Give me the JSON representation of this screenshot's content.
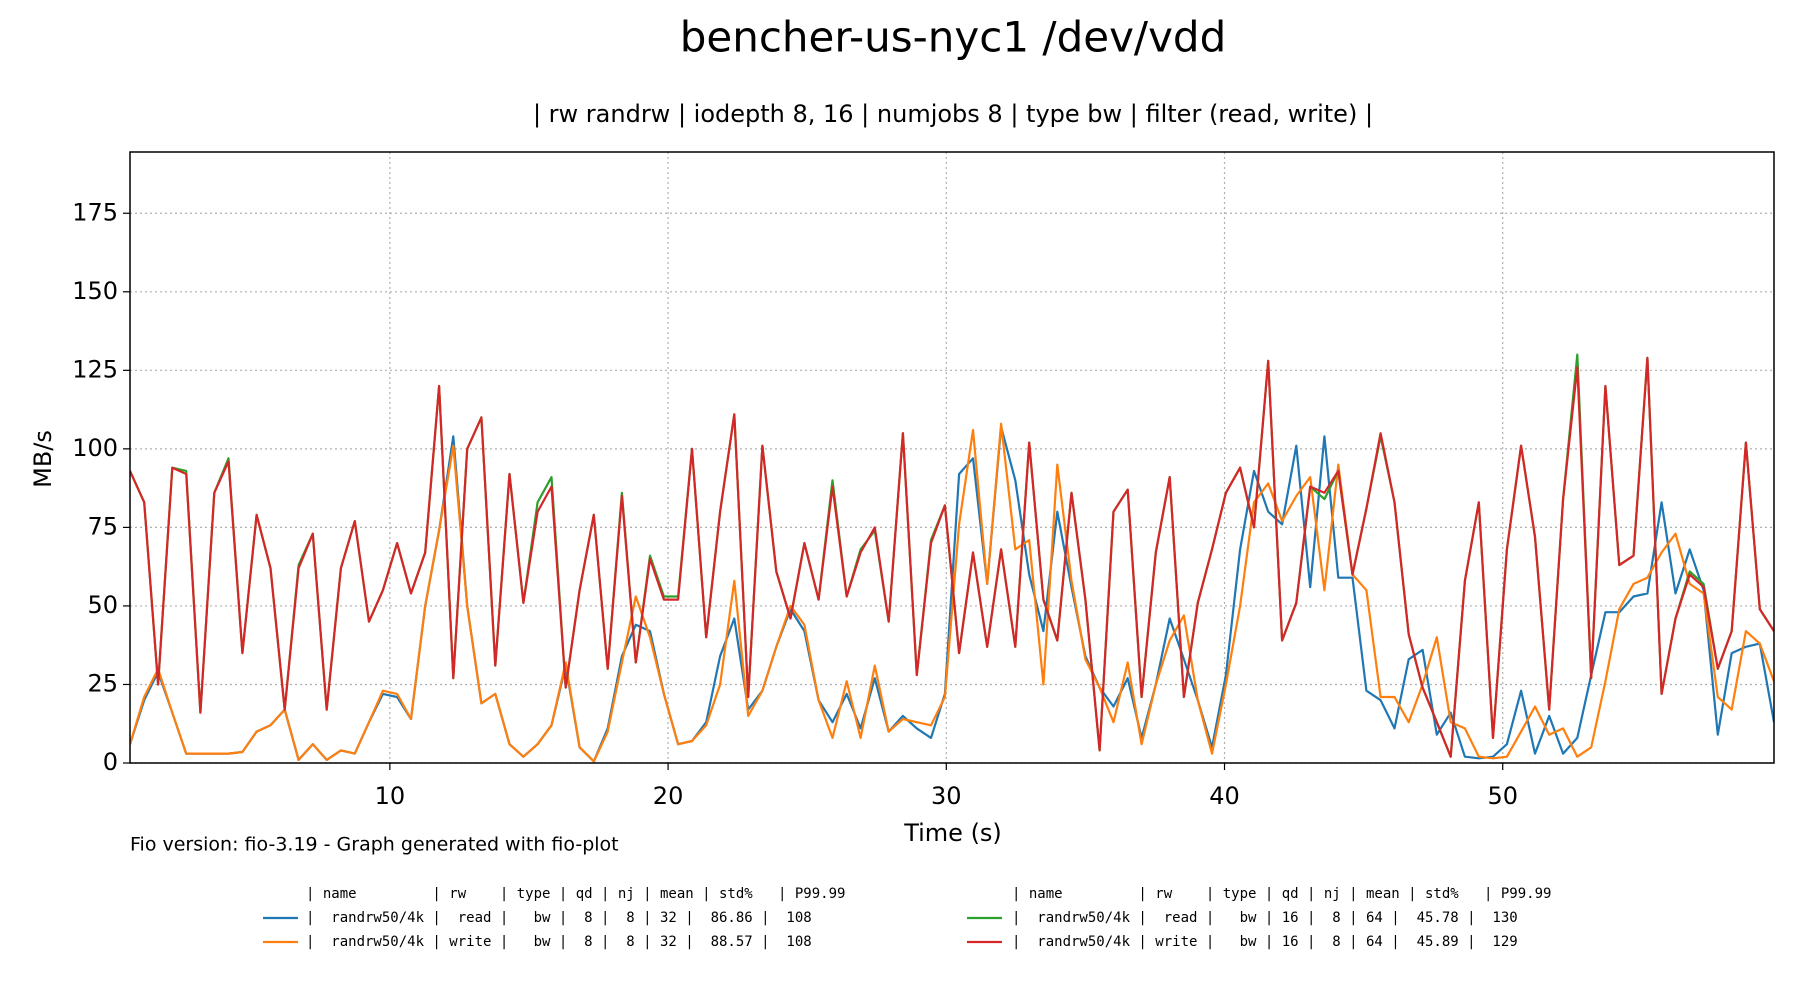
{
  "chart_data": {
    "type": "line",
    "title": "bencher-us-nyc1 /dev/vdd",
    "subtitle": "| rw randrw | iodepth 8, 16 | numjobs 8 | type bw | filter (read, write) |",
    "xlabel": "Time (s)",
    "ylabel": "MB/s",
    "footer": "Fio version: fio-3.19 - Graph generated with fio-plot",
    "legend": "below",
    "legend_header": "| name         | rw    | type | qd | nj | mean | std%   | P99.99",
    "grid": true,
    "xlim": [
      0.66,
      59.75
    ],
    "xticks": [
      10,
      20,
      30,
      40,
      50
    ],
    "ylim": [
      0,
      194.5
    ],
    "yticks": [
      0,
      25,
      50,
      75,
      100,
      125,
      150,
      175
    ],
    "x": [
      0.66,
      1.17,
      1.67,
      2.18,
      2.68,
      3.19,
      3.69,
      4.2,
      4.7,
      5.21,
      5.71,
      6.22,
      6.72,
      7.23,
      7.73,
      8.24,
      8.74,
      9.25,
      9.75,
      10.26,
      10.76,
      11.27,
      11.77,
      12.28,
      12.78,
      13.29,
      13.79,
      14.3,
      14.8,
      15.31,
      15.81,
      16.32,
      16.82,
      17.33,
      17.83,
      18.34,
      18.84,
      19.35,
      19.85,
      20.36,
      20.86,
      21.37,
      21.87,
      22.38,
      22.88,
      23.39,
      23.89,
      24.4,
      24.9,
      25.41,
      25.91,
      26.42,
      26.92,
      27.43,
      27.93,
      28.44,
      28.94,
      29.45,
      29.95,
      30.46,
      30.96,
      31.47,
      31.97,
      32.48,
      32.98,
      33.49,
      33.99,
      34.5,
      35.0,
      35.51,
      36.01,
      36.52,
      37.02,
      37.53,
      38.03,
      38.54,
      39.04,
      39.55,
      40.05,
      40.56,
      41.06,
      41.57,
      42.07,
      42.58,
      43.08,
      43.59,
      44.09,
      44.6,
      45.1,
      45.61,
      46.11,
      46.62,
      47.12,
      47.63,
      48.13,
      48.64,
      49.14,
      49.65,
      50.15,
      50.66,
      51.16,
      51.67,
      52.17,
      52.68,
      53.18,
      53.69,
      54.19,
      54.7,
      55.2,
      55.71,
      56.21,
      56.72,
      57.22,
      57.73,
      58.23,
      58.74,
      59.24,
      59.75
    ],
    "series": [
      {
        "name": "|  randrw50/4k |  read |   bw |  8 |  8 | 32 |  86.86 |  108",
        "color": "#1f77b4",
        "values": [
          6,
          20,
          29,
          16,
          3,
          3,
          3,
          3,
          3.5,
          10,
          12,
          17,
          1,
          6,
          1,
          4,
          3,
          13,
          22,
          21,
          14,
          50,
          74,
          104,
          50,
          19,
          22,
          6,
          2,
          6,
          12,
          31,
          5,
          0.5,
          11,
          34,
          44,
          42,
          22,
          6,
          7,
          13,
          34,
          46,
          17,
          23,
          37,
          49,
          42,
          20,
          13,
          22,
          11,
          27,
          10,
          15,
          11,
          8,
          22,
          92,
          97,
          57,
          107,
          90,
          60,
          42,
          80,
          56,
          34,
          24,
          18,
          27,
          8,
          25,
          46,
          33,
          20,
          5,
          28,
          68,
          93,
          80,
          76,
          101,
          56,
          104,
          59,
          59,
          23,
          20,
          11,
          33,
          36,
          9,
          16,
          2,
          1.5,
          2,
          6,
          23,
          3,
          15,
          3,
          8,
          28,
          48,
          48,
          53,
          54,
          83,
          54,
          68,
          55,
          9,
          35,
          37,
          38,
          13
        ]
      },
      {
        "name": "|  randrw50/4k | write |   bw |  8 |  8 | 32 |  88.57 |  108",
        "color": "#ff7f0e",
        "values": [
          6,
          21,
          30,
          16,
          3,
          3,
          3,
          3,
          3.5,
          10,
          12,
          17,
          1,
          6,
          1,
          4,
          3,
          13,
          23,
          22,
          14,
          50,
          74,
          101,
          50,
          19,
          22,
          6,
          2,
          6,
          12,
          32,
          5,
          0.5,
          10,
          32,
          53,
          40,
          22,
          6,
          7,
          12,
          25,
          58,
          15,
          23,
          37,
          50,
          44,
          20,
          8,
          26,
          8,
          31,
          10,
          14,
          13,
          12,
          21,
          76,
          106,
          57,
          108,
          68,
          71,
          25,
          95,
          58,
          33,
          24,
          13,
          32,
          6,
          25,
          39,
          47,
          20,
          3,
          25,
          50,
          83,
          89,
          77,
          85,
          91,
          55,
          95,
          60,
          55,
          21,
          21,
          13,
          25,
          40,
          13,
          11,
          2,
          1.5,
          2,
          10,
          18,
          9,
          11,
          2,
          5,
          26,
          49,
          57,
          59,
          67,
          73,
          57,
          54,
          21,
          17,
          42,
          38,
          26
        ]
      },
      {
        "name": "|  randrw50/4k |  read |   bw | 16 |  8 | 64 |  45.78 |  130",
        "color": "#2ca02c",
        "values": [
          93,
          83,
          25,
          94,
          93,
          16,
          86,
          97,
          35,
          79,
          62,
          17,
          63,
          73,
          17,
          62,
          77,
          45,
          55,
          70,
          54,
          67,
          120,
          27,
          100,
          110,
          31,
          92,
          51,
          83,
          91,
          24,
          55,
          79,
          30,
          86,
          32,
          66,
          53,
          53,
          100,
          40,
          80,
          111,
          21,
          101,
          61,
          46,
          70,
          52,
          90,
          53,
          68,
          74,
          45,
          105,
          28,
          71,
          82,
          35,
          67,
          37,
          68,
          37,
          102,
          52,
          39,
          86,
          52,
          4,
          80,
          87,
          21,
          67,
          91,
          21,
          51,
          68,
          86,
          94,
          75,
          128,
          39,
          51,
          88,
          84,
          93,
          60,
          81,
          104,
          83,
          41,
          24,
          13,
          2,
          58,
          83,
          8,
          68,
          101,
          72,
          17,
          84,
          130,
          27,
          120,
          63,
          66,
          129,
          22,
          46,
          61,
          57,
          30,
          42,
          102,
          49,
          42
        ]
      },
      {
        "name": "|  randrw50/4k | write |   bw | 16 |  8 | 64 |  45.89 |  129",
        "color": "#d62728",
        "values": [
          93,
          83,
          25,
          94,
          92,
          16,
          86,
          96,
          35,
          79,
          62,
          17,
          62,
          73,
          17,
          62,
          77,
          45,
          55,
          70,
          54,
          67,
          120,
          27,
          100,
          110,
          31,
          92,
          51,
          80,
          88,
          24,
          55,
          79,
          30,
          85,
          32,
          65,
          52,
          52,
          100,
          40,
          80,
          111,
          21,
          101,
          61,
          46,
          70,
          52,
          88,
          53,
          67,
          75,
          45,
          105,
          28,
          70,
          82,
          35,
          67,
          37,
          68,
          37,
          102,
          52,
          39,
          86,
          52,
          4,
          80,
          87,
          21,
          67,
          91,
          21,
          51,
          68,
          86,
          94,
          75,
          128,
          39,
          51,
          88,
          86,
          93,
          60,
          81,
          105,
          83,
          41,
          24,
          13,
          2,
          58,
          83,
          8,
          68,
          101,
          72,
          17,
          84,
          126,
          27,
          120,
          63,
          66,
          129,
          22,
          46,
          60,
          56,
          30,
          42,
          102,
          49,
          42
        ]
      }
    ]
  }
}
